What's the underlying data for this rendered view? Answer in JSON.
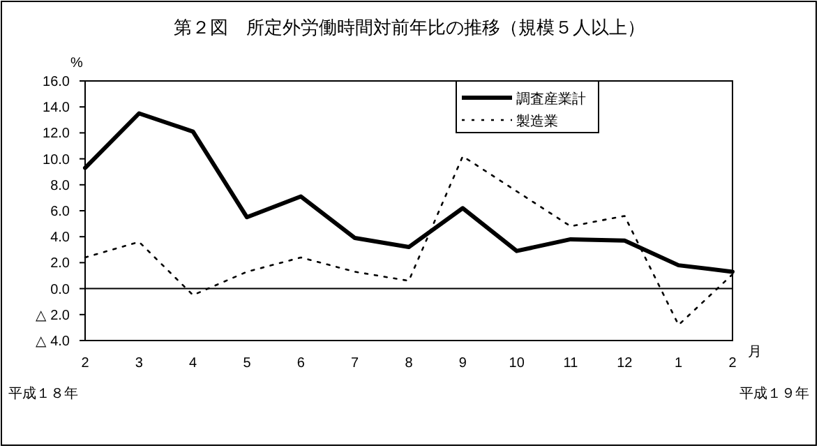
{
  "chart_data": {
    "type": "line",
    "title": "第２図　所定外労働時間対前年比の推移（規模５人以上）",
    "ylabel": "%",
    "xlabel": "月",
    "annotations": [
      "平成１８年",
      "平成１９年"
    ],
    "categories": [
      "2",
      "3",
      "4",
      "5",
      "6",
      "7",
      "8",
      "9",
      "10",
      "11",
      "12",
      "1",
      "2"
    ],
    "series": [
      {
        "name": "調査産業計",
        "color": "#000000",
        "line_style": "solid",
        "values": [
          9.3,
          13.5,
          12.1,
          5.5,
          7.1,
          3.9,
          3.2,
          6.2,
          2.9,
          3.8,
          3.7,
          1.8,
          1.3
        ]
      },
      {
        "name": "製造業",
        "color": "#000000",
        "line_style": "dotted",
        "values": [
          2.4,
          3.6,
          -0.5,
          1.3,
          2.4,
          1.3,
          0.6,
          10.2,
          7.5,
          4.8,
          5.6,
          -2.8,
          1.1
        ]
      }
    ],
    "ylim": [
      -4,
      16
    ],
    "yticks": [
      {
        "value": -4,
        "label": "△ 4.0"
      },
      {
        "value": -2,
        "label": "△ 2.0"
      },
      {
        "value": 0,
        "label": "0.0"
      },
      {
        "value": 2,
        "label": "2.0"
      },
      {
        "value": 4,
        "label": "4.0"
      },
      {
        "value": 6,
        "label": "6.0"
      },
      {
        "value": 8,
        "label": "8.0"
      },
      {
        "value": 10,
        "label": "10.0"
      },
      {
        "value": 12,
        "label": "12.0"
      },
      {
        "value": 14,
        "label": "14.0"
      },
      {
        "value": 16,
        "label": "16.0"
      }
    ],
    "ref_lines": [
      {
        "axis": "y",
        "value": 0,
        "color": "#000000"
      }
    ],
    "legend": "top right",
    "grid": false,
    "marker": "none"
  }
}
